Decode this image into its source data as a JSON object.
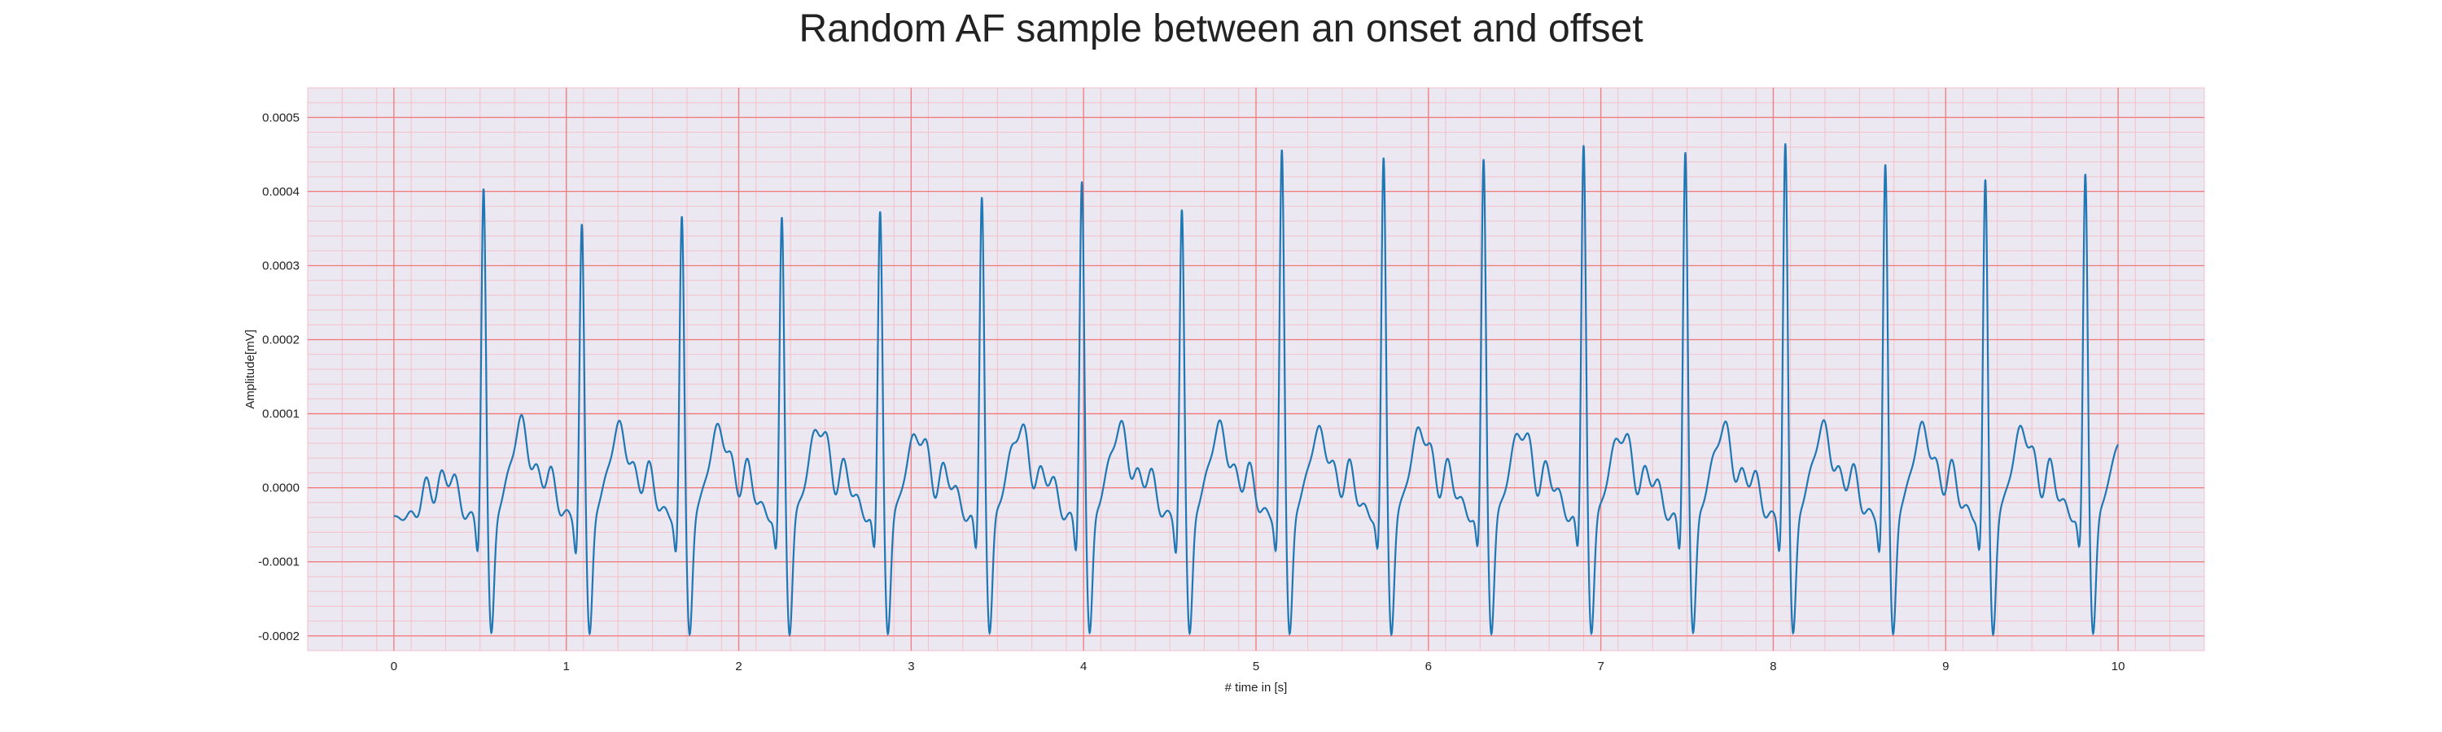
{
  "chart_data": {
    "type": "line",
    "title": "Random AF sample between an onset and offset",
    "xlabel": "# time in [s]",
    "ylabel": "Amplitude[mV]",
    "xlim": [
      -0.5,
      10.5
    ],
    "ylim": [
      -0.00022,
      0.00054
    ],
    "x_ticks": [
      0,
      1,
      2,
      3,
      4,
      5,
      6,
      7,
      8,
      9,
      10
    ],
    "x_tick_labels": [
      "0",
      "1",
      "2",
      "3",
      "4",
      "5",
      "6",
      "7",
      "8",
      "9",
      "10"
    ],
    "y_ticks": [
      -0.0002,
      -0.0001,
      0.0,
      0.0001,
      0.0002,
      0.0003,
      0.0004,
      0.0005
    ],
    "y_tick_labels": [
      "-0.0002",
      "-0.0001",
      "0.0000",
      "0.0001",
      "0.0002",
      "0.0003",
      "0.0004",
      "0.0005"
    ],
    "grid": true,
    "colors": {
      "background": "#ebe8f2",
      "major_grid": "#f08080",
      "minor_grid": "#f4c0c8",
      "line": "#1f77b4"
    },
    "series": [
      {
        "beats": [
          {
            "r_time": 0.52,
            "r_peak": 0.00045
          },
          {
            "r_time": 1.09,
            "r_peak": 0.0004
          },
          {
            "r_time": 1.67,
            "r_peak": 0.00041
          },
          {
            "r_time": 2.25,
            "r_peak": 0.00041
          },
          {
            "r_time": 2.82,
            "r_peak": 0.00042
          },
          {
            "r_time": 3.41,
            "r_peak": 0.00044
          },
          {
            "r_time": 3.99,
            "r_peak": 0.00046
          },
          {
            "r_time": 4.57,
            "r_peak": 0.00042
          },
          {
            "r_time": 5.15,
            "r_peak": 0.0005
          },
          {
            "r_time": 5.74,
            "r_peak": 0.00049
          },
          {
            "r_time": 6.32,
            "r_peak": 0.00049
          },
          {
            "r_time": 6.9,
            "r_peak": 0.00051
          },
          {
            "r_time": 7.49,
            "r_peak": 0.0005
          },
          {
            "r_time": 8.07,
            "r_peak": 0.00051
          },
          {
            "r_time": 8.65,
            "r_peak": 0.00048
          },
          {
            "r_time": 9.23,
            "r_peak": 0.00046
          },
          {
            "r_time": 9.81,
            "r_peak": 0.00047
          }
        ],
        "x_start": 0.0,
        "x_end": 10.0,
        "baseline_min": -0.00019,
        "baseline_max": 7e-05
      }
    ]
  }
}
